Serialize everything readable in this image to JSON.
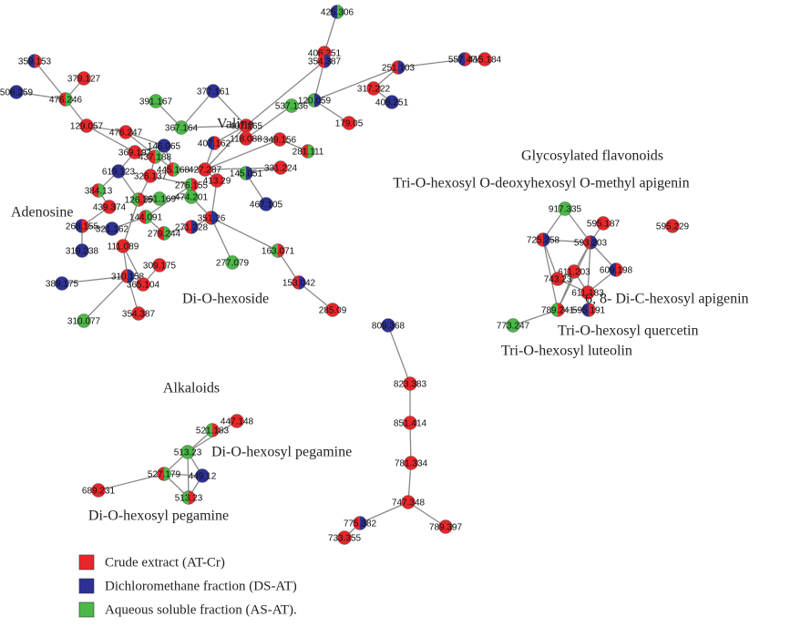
{
  "nodes": [
    {
      "label": "425.306",
      "colors": [
        "#2d3194",
        "#4cb848"
      ]
    },
    {
      "label": "406.251",
      "colors": [
        "#e8262a"
      ]
    },
    {
      "label": "354.387",
      "colors": [
        "#e8262a",
        "#2d3194"
      ]
    },
    {
      "label": "251.103",
      "colors": [
        "#e8262a",
        "#2d3194"
      ]
    },
    {
      "label": "557.474",
      "colors": [
        "#2d3194",
        "#e8262a"
      ]
    },
    {
      "label": "415.184",
      "colors": [
        "#e8262a"
      ]
    },
    {
      "label": "317.222",
      "colors": [
        "#e8262a"
      ]
    },
    {
      "label": "409.251",
      "colors": [
        "#2d3194"
      ]
    },
    {
      "label": "179.05",
      "colors": [
        "#e8262a"
      ]
    },
    {
      "label": "537.136",
      "colors": [
        "#4cb848"
      ]
    },
    {
      "label": "120.059",
      "colors": [
        "#4cb848",
        "#2d3194"
      ]
    },
    {
      "label": "359.153",
      "colors": [
        "#2d3194",
        "#e8262a"
      ]
    },
    {
      "label": "379.127",
      "colors": [
        "#e8262a"
      ]
    },
    {
      "label": "506.259",
      "colors": [
        "#2d3194"
      ]
    },
    {
      "label": "476.246",
      "colors": [
        "#e8262a",
        "#4cb848"
      ]
    },
    {
      "label": "391.167",
      "colors": [
        "#4cb848"
      ]
    },
    {
      "label": "377.161",
      "colors": [
        "#2d3194"
      ]
    },
    {
      "label": "129.057",
      "colors": [
        "#e8262a"
      ]
    },
    {
      "label": "476.247",
      "colors": [
        "#e8262a"
      ]
    },
    {
      "label": "367.164",
      "colors": [
        "#4cb848"
      ]
    },
    {
      "label": "407.265",
      "colors": [
        "#e8262a"
      ]
    },
    {
      "label": "118.088",
      "colors": [
        "#e8262a"
      ]
    },
    {
      "label": "349.156",
      "colors": [
        "#e8262a"
      ]
    },
    {
      "label": "281.111",
      "colors": [
        "#e8262a",
        "#4cb848"
      ]
    },
    {
      "label": "407.162",
      "colors": [
        "#2d3194",
        "#e8262a"
      ]
    },
    {
      "label": "146.065",
      "colors": [
        "#2d3194"
      ]
    },
    {
      "label": "369.192",
      "colors": [
        "#e8262a"
      ]
    },
    {
      "label": "437.188",
      "colors": [
        "#e8262a",
        "#4cb848"
      ]
    },
    {
      "label": "331.224",
      "colors": [
        "#e8262a"
      ]
    },
    {
      "label": "445.168",
      "colors": [
        "#e8262a",
        "#4cb848"
      ]
    },
    {
      "label": "427.287",
      "colors": [
        "#e8262a"
      ]
    },
    {
      "label": "619.123",
      "colors": [
        "#2d3194"
      ]
    },
    {
      "label": "326.137",
      "colors": [
        "#e8262a"
      ]
    },
    {
      "label": "276.155",
      "colors": [
        "#4cb848",
        "#e8262a"
      ]
    },
    {
      "label": "145.051",
      "colors": [
        "#4cb848",
        "#2d3194"
      ]
    },
    {
      "label": "413.29",
      "colors": [
        "#e8262a"
      ]
    },
    {
      "label": "384.13",
      "colors": [
        "#e8262a",
        "#4cb848"
      ]
    },
    {
      "label": "126.15",
      "colors": [
        "#4cb848",
        "#e8262a"
      ]
    },
    {
      "label": "361.169",
      "colors": [
        "#4cb848"
      ]
    },
    {
      "label": "474.201",
      "colors": [
        "#4cb848"
      ]
    },
    {
      "label": "467.105",
      "colors": [
        "#2d3194"
      ]
    },
    {
      "label": "439.374",
      "colors": [
        "#e8262a"
      ]
    },
    {
      "label": "268.155",
      "colors": [
        "#2d3194",
        "#e8262a"
      ]
    },
    {
      "label": "321.162",
      "colors": [
        "#2d3194"
      ]
    },
    {
      "label": "144.091",
      "colors": [
        "#e8262a",
        "#4cb848"
      ]
    },
    {
      "label": "351.26",
      "colors": [
        "#e8262a",
        "#2d3194"
      ]
    },
    {
      "label": "271.228",
      "colors": [
        "#e8262a",
        "#2d3194"
      ]
    },
    {
      "label": "279.244",
      "colors": [
        "#e8262a",
        "#4cb848"
      ]
    },
    {
      "label": "319.238",
      "colors": [
        "#2d3194"
      ]
    },
    {
      "label": "111.089",
      "colors": [
        "#e8262a"
      ]
    },
    {
      "label": "163.071",
      "colors": [
        "#4cb848",
        "#e8262a"
      ]
    },
    {
      "label": "277.079",
      "colors": [
        "#4cb848"
      ]
    },
    {
      "label": "309.175",
      "colors": [
        "#e8262a"
      ]
    },
    {
      "label": "310.158",
      "colors": [
        "#e8262a",
        "#2d3194"
      ]
    },
    {
      "label": "389.175",
      "colors": [
        "#2d3194"
      ]
    },
    {
      "label": "365.104",
      "colors": [
        "#e8262a"
      ]
    },
    {
      "label": "153.042",
      "colors": [
        "#e8262a",
        "#2d3194"
      ]
    },
    {
      "label": "310.077",
      "colors": [
        "#4cb848"
      ]
    },
    {
      "label": "354.387",
      "colors": [
        "#e8262a"
      ]
    },
    {
      "label": "285.09",
      "colors": [
        "#e8262a"
      ]
    },
    {
      "label": "917.335",
      "colors": [
        "#4cb848"
      ]
    },
    {
      "label": "595.187",
      "colors": [
        "#e8262a"
      ]
    },
    {
      "label": "595.229",
      "colors": [
        "#e8262a"
      ]
    },
    {
      "label": "725.258",
      "colors": [
        "#e8262a",
        "#2d3194"
      ]
    },
    {
      "label": "593.203",
      "colors": [
        "#e8262a",
        "#2d3194"
      ]
    },
    {
      "label": "611.203",
      "colors": [
        "#e8262a"
      ]
    },
    {
      "label": "609.198",
      "colors": [
        "#2d3194",
        "#e8262a"
      ]
    },
    {
      "label": "743.23",
      "colors": [
        "#e8262a"
      ]
    },
    {
      "label": "611.183",
      "colors": [
        "#e8262a"
      ]
    },
    {
      "label": "789.241",
      "colors": [
        "#4cb848",
        "#e8262a"
      ]
    },
    {
      "label": "595.191",
      "colors": [
        "#2d3194",
        "#e8262a"
      ]
    },
    {
      "label": "773.247",
      "colors": [
        "#4cb848"
      ]
    },
    {
      "label": "809.368",
      "colors": [
        "#2d3194"
      ]
    },
    {
      "label": "823.383",
      "colors": [
        "#e8262a"
      ]
    },
    {
      "label": "851.414",
      "colors": [
        "#e8262a"
      ]
    },
    {
      "label": "781.334",
      "colors": [
        "#e8262a"
      ]
    },
    {
      "label": "747.348",
      "colors": [
        "#e8262a"
      ]
    },
    {
      "label": "775.382",
      "colors": [
        "#e8262a",
        "#2d3194"
      ]
    },
    {
      "label": "789.397",
      "colors": [
        "#e8262a"
      ]
    },
    {
      "label": "733.355",
      "colors": [
        "#e8262a"
      ]
    },
    {
      "label": "521.183",
      "colors": [
        "#4cb848",
        "#e8262a"
      ]
    },
    {
      "label": "447.148",
      "colors": [
        "#e8262a"
      ]
    },
    {
      "label": "513.23",
      "colors": [
        "#4cb848"
      ]
    },
    {
      "label": "527.179",
      "colors": [
        "#e8262a",
        "#4cb848"
      ]
    },
    {
      "label": "449.12",
      "colors": [
        "#2d3194"
      ]
    },
    {
      "label": "689.231",
      "colors": [
        "#e8262a"
      ]
    },
    {
      "label": "513.23",
      "colors": [
        "#4cb848",
        "#e8262a"
      ]
    }
  ],
  "annotations": [
    "Valine",
    "Adenosine",
    "Di-O-hexoside",
    "Glycosylated flavonoids",
    "Tri-O-hexosyl O-deoxyhexosyl O-methyl apigenin",
    "6, 8- Di-C-hexosyl apigenin",
    "Tri-O-hexosyl quercetin",
    "Tri-O-hexosyl luteolin",
    "Alkaloids",
    "Di-O-hexosyl pegamine",
    "Di-O-hexosyl pegamine"
  ],
  "legend": [
    {
      "label": "Crude extract (AT-Cr)",
      "color": "#e8262a"
    },
    {
      "label": "Dichloromethane fraction (DS-AT)",
      "color": "#2d3194"
    },
    {
      "label": "Aqueous soluble fraction (AS-AT).",
      "color": "#4cb848"
    }
  ]
}
